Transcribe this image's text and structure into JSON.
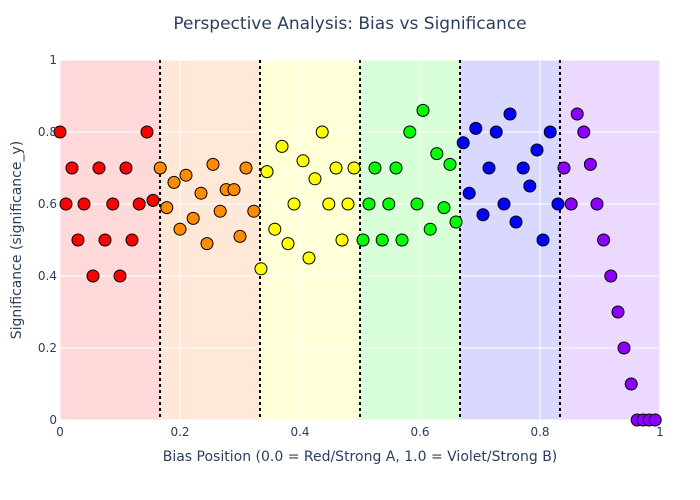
{
  "chart_data": {
    "type": "scatter",
    "title": "Perspective Analysis: Bias vs Significance",
    "xlabel": "Bias Position (0.0 = Red/Strong A, 1.0 = Violet/Strong B)",
    "ylabel": "Significance (significance_y)",
    "xlim": [
      0,
      1
    ],
    "ylim": [
      0,
      1
    ],
    "x_ticks": [
      "0",
      "0.2",
      "0.4",
      "0.6",
      "0.8",
      "1"
    ],
    "y_ticks": [
      "0",
      "0.2",
      "0.4",
      "0.6",
      "0.8",
      "1"
    ],
    "grid": true,
    "legend": "none",
    "background_bands": [
      {
        "from": 0.0,
        "to": 0.1667,
        "color": "#ffd9d9"
      },
      {
        "from": 0.1667,
        "to": 0.3333,
        "color": "#ffe8d8"
      },
      {
        "from": 0.3333,
        "to": 0.5,
        "color": "#ffffd8"
      },
      {
        "from": 0.5,
        "to": 0.6667,
        "color": "#d9ffd9"
      },
      {
        "from": 0.6667,
        "to": 0.8333,
        "color": "#d9d9ff"
      },
      {
        "from": 0.8333,
        "to": 1.0,
        "color": "#ecd9ff"
      }
    ],
    "divider_lines_x": [
      0.1667,
      0.3333,
      0.5,
      0.6667,
      0.8333
    ],
    "series": [
      {
        "color": "#ff0000",
        "points": [
          [
            0.0,
            0.8
          ],
          [
            0.01,
            0.6
          ],
          [
            0.02,
            0.7
          ],
          [
            0.03,
            0.5
          ],
          [
            0.04,
            0.6
          ],
          [
            0.055,
            0.4
          ],
          [
            0.065,
            0.7
          ],
          [
            0.075,
            0.5
          ],
          [
            0.088,
            0.6
          ],
          [
            0.1,
            0.4
          ],
          [
            0.11,
            0.7
          ],
          [
            0.12,
            0.5
          ],
          [
            0.132,
            0.6
          ],
          [
            0.145,
            0.8
          ],
          [
            0.155,
            0.61
          ]
        ]
      },
      {
        "color": "#ff8c00",
        "points": [
          [
            0.167,
            0.7
          ],
          [
            0.178,
            0.59
          ],
          [
            0.19,
            0.66
          ],
          [
            0.2,
            0.53
          ],
          [
            0.21,
            0.68
          ],
          [
            0.222,
            0.56
          ],
          [
            0.235,
            0.63
          ],
          [
            0.245,
            0.49
          ],
          [
            0.255,
            0.71
          ],
          [
            0.267,
            0.58
          ],
          [
            0.277,
            0.64
          ],
          [
            0.29,
            0.64
          ],
          [
            0.3,
            0.51
          ],
          [
            0.31,
            0.7
          ],
          [
            0.323,
            0.58
          ]
        ]
      },
      {
        "color": "#ffff00",
        "points": [
          [
            0.335,
            0.42
          ],
          [
            0.345,
            0.69
          ],
          [
            0.358,
            0.53
          ],
          [
            0.37,
            0.76
          ],
          [
            0.38,
            0.49
          ],
          [
            0.39,
            0.6
          ],
          [
            0.405,
            0.72
          ],
          [
            0.415,
            0.45
          ],
          [
            0.425,
            0.67
          ],
          [
            0.437,
            0.8
          ],
          [
            0.448,
            0.6
          ],
          [
            0.46,
            0.7
          ],
          [
            0.47,
            0.5
          ],
          [
            0.48,
            0.6
          ],
          [
            0.49,
            0.7
          ]
        ]
      },
      {
        "color": "#00ff00",
        "points": [
          [
            0.505,
            0.5
          ],
          [
            0.515,
            0.6
          ],
          [
            0.525,
            0.7
          ],
          [
            0.537,
            0.5
          ],
          [
            0.548,
            0.6
          ],
          [
            0.56,
            0.7
          ],
          [
            0.57,
            0.5
          ],
          [
            0.583,
            0.8
          ],
          [
            0.595,
            0.6
          ],
          [
            0.605,
            0.86
          ],
          [
            0.617,
            0.53
          ],
          [
            0.628,
            0.74
          ],
          [
            0.64,
            0.59
          ],
          [
            0.65,
            0.71
          ],
          [
            0.66,
            0.55
          ]
        ]
      },
      {
        "color": "#0000ff",
        "points": [
          [
            0.672,
            0.77
          ],
          [
            0.682,
            0.63
          ],
          [
            0.693,
            0.81
          ],
          [
            0.705,
            0.57
          ],
          [
            0.715,
            0.7
          ],
          [
            0.727,
            0.8
          ],
          [
            0.74,
            0.6
          ],
          [
            0.75,
            0.85
          ],
          [
            0.76,
            0.55
          ],
          [
            0.772,
            0.7
          ],
          [
            0.783,
            0.65
          ],
          [
            0.795,
            0.75
          ],
          [
            0.805,
            0.5
          ],
          [
            0.817,
            0.8
          ],
          [
            0.83,
            0.6
          ]
        ]
      },
      {
        "color": "#8b00ff",
        "points": [
          [
            0.84,
            0.7
          ],
          [
            0.852,
            0.6
          ],
          [
            0.862,
            0.85
          ],
          [
            0.873,
            0.8
          ],
          [
            0.884,
            0.71
          ],
          [
            0.895,
            0.6
          ],
          [
            0.906,
            0.5
          ],
          [
            0.918,
            0.4
          ],
          [
            0.93,
            0.3
          ],
          [
            0.94,
            0.2
          ],
          [
            0.952,
            0.1
          ],
          [
            0.962,
            0.0
          ],
          [
            0.972,
            0.0
          ],
          [
            0.982,
            0.0
          ],
          [
            0.992,
            0.0
          ]
        ]
      }
    ]
  }
}
